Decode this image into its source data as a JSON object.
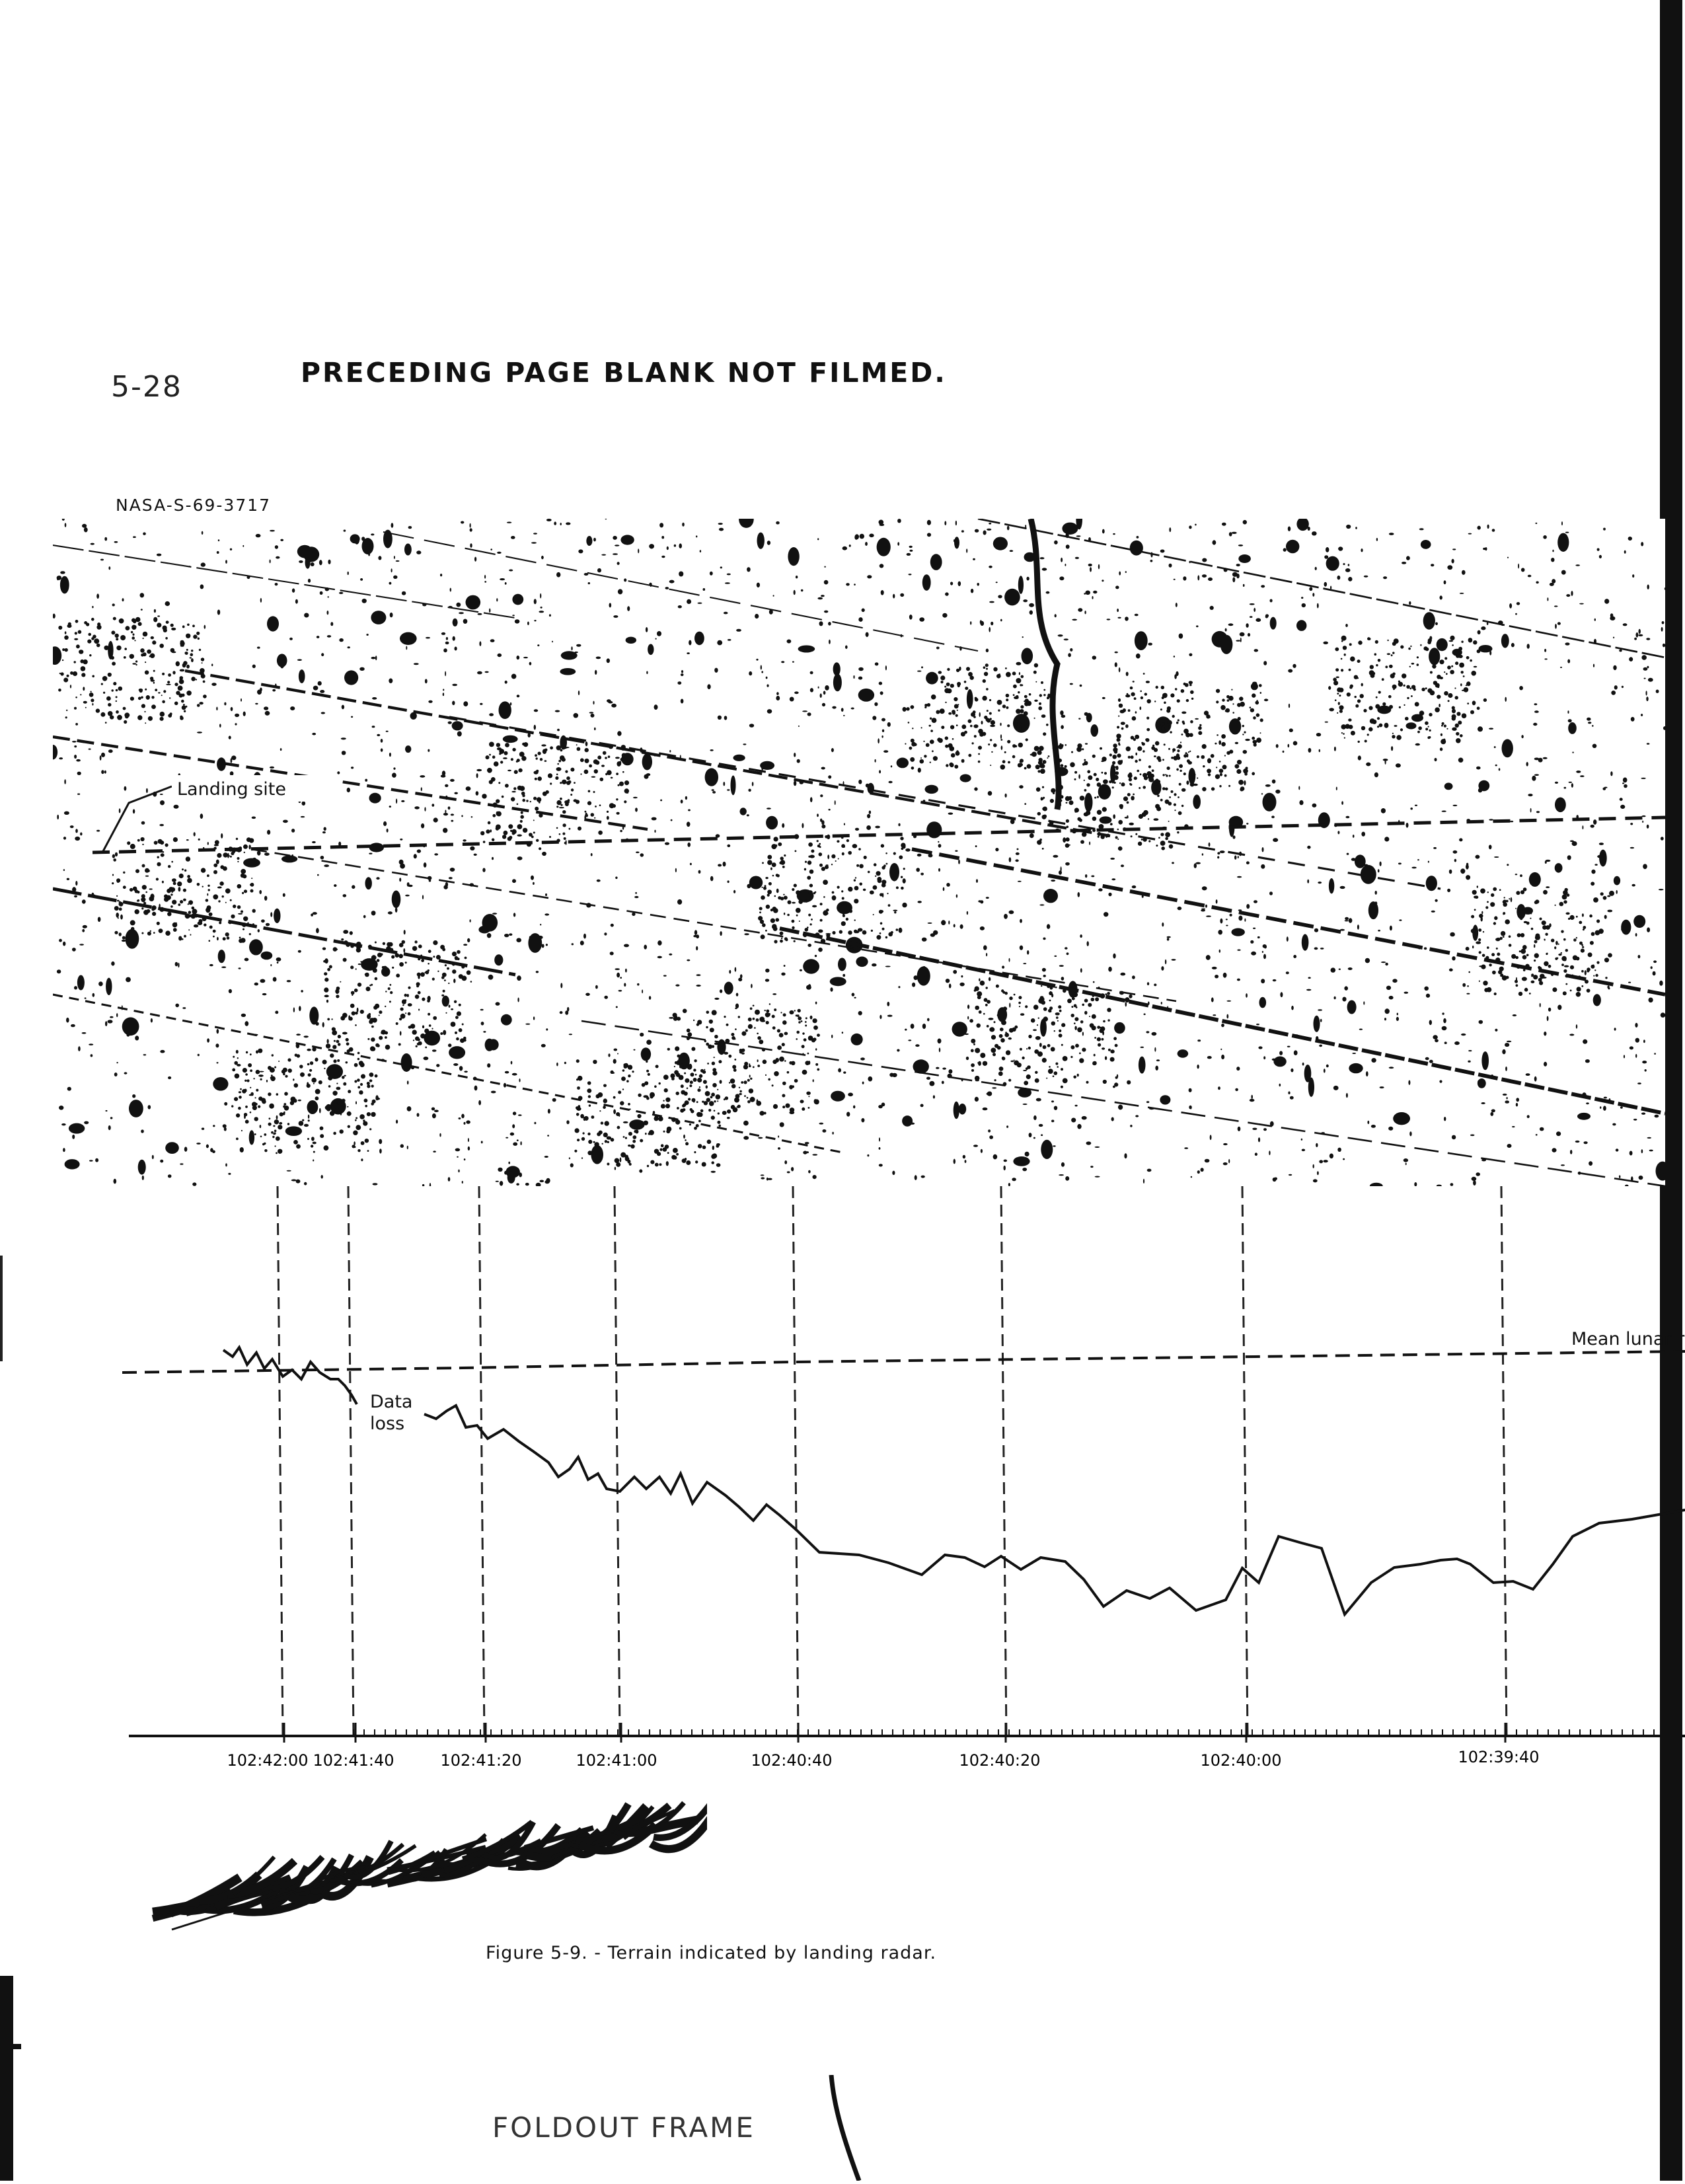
{
  "header": {
    "page_number": "5-28",
    "notice": "PRECEDING PAGE BLANK NOT FILMED."
  },
  "figure": {
    "photo_id": "NASA-S-69-3717",
    "landing_site_label": "Landing site",
    "mean_lunar_label": "Mean lunar r",
    "data_loss_label_line1": "Data",
    "data_loss_label_line2": "loss",
    "caption": "Figure 5-9. - Terrain indicated by landing radar."
  },
  "chart_data": {
    "type": "line",
    "xlabel": "",
    "ylabel": "",
    "tick_labels": [
      "102:42:00",
      "102:41:40",
      "102:41:20",
      "102:41:00",
      "102:40:40",
      "102:40:20",
      "102:40:00",
      "102:39:40"
    ],
    "x_direction": "time decreasing left to right",
    "series": [
      {
        "name": "Mean lunar r",
        "style": "dashed"
      }
    ]
  },
  "footer": {
    "foldout_text": "FOLDOUT FRAME"
  },
  "colors": {
    "ink": "#111111",
    "paper": "#ffffff"
  }
}
